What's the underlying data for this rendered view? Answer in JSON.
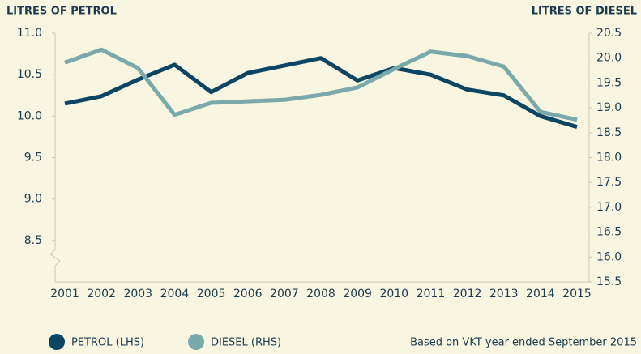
{
  "chart_data": {
    "type": "line",
    "y_axis_label": "LITRES OF PETROL",
    "y2_axis_label": "LITRES OF DIESEL",
    "note": "Based on VKT year ended September 2015",
    "categories": [
      "2001",
      "2002",
      "2003",
      "2004",
      "2005",
      "2006",
      "2007",
      "2008",
      "2009",
      "2010",
      "2011",
      "2012",
      "2013",
      "2014",
      "2015"
    ],
    "series": [
      {
        "name": "PETROL (LHS)",
        "color": "#0b4563",
        "axis": "y",
        "values": [
          10.15,
          10.24,
          10.44,
          10.62,
          10.29,
          10.52,
          10.61,
          10.7,
          10.43,
          10.58,
          10.5,
          10.32,
          10.25,
          10.0,
          9.87
        ]
      },
      {
        "name": "DIESEL (RHS)",
        "color": "#7aa9ab",
        "axis": "y2",
        "values": [
          19.91,
          20.17,
          19.8,
          18.86,
          19.1,
          19.13,
          19.16,
          19.26,
          19.41,
          19.78,
          20.13,
          20.04,
          19.83,
          18.92,
          18.76
        ]
      }
    ],
    "ylim": [
      8.0,
      11.0
    ],
    "yticks": [
      {
        "value": 11,
        "label": "11.0"
      },
      10.5,
      {
        "value": 10,
        "label": "10.0"
      },
      9.5,
      {
        "value": 9,
        "label": "9.0"
      },
      8.5
    ],
    "y2lim": [
      15.5,
      20.5
    ],
    "y2ticks": [
      20.5,
      {
        "value": 20,
        "label": "20.0"
      },
      19.5,
      {
        "value": 19,
        "label": "19.0"
      },
      18.5,
      {
        "value": 18,
        "label": "18.0"
      },
      17.5,
      {
        "value": 17,
        "label": "17.0"
      },
      16.5,
      {
        "value": 16,
        "label": "16.0"
      },
      15.5
    ],
    "grid": false
  }
}
